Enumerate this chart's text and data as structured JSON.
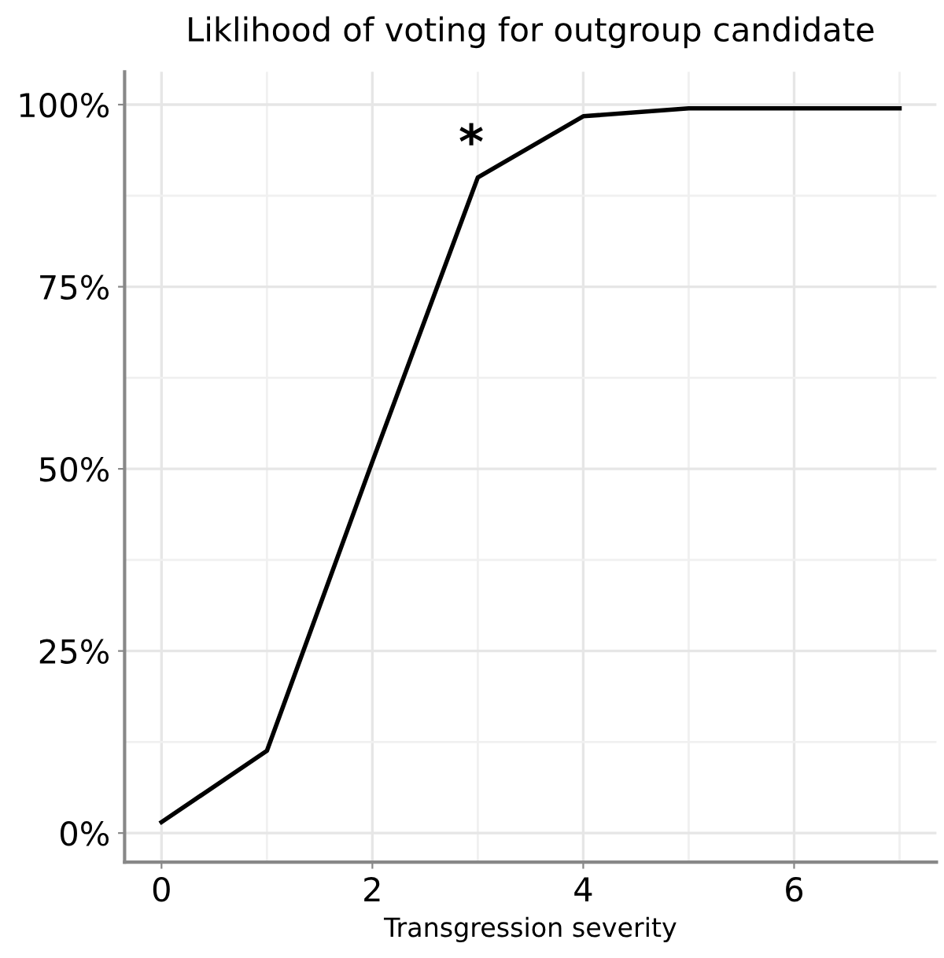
{
  "chart_data": {
    "type": "line",
    "title": "Liklihood of voting for outgroup candidate",
    "xlabel": "Transgression severity",
    "x": [
      0,
      1,
      2,
      3,
      4,
      5,
      6,
      7
    ],
    "series": [
      {
        "color": "#000000",
        "values": [
          1.5,
          11.3,
          51,
          90,
          98.4,
          99.5,
          99.5,
          99.5
        ]
      }
    ],
    "xlim": [
      -0.35,
      7.35
    ],
    "ylim": [
      -4,
      104.5
    ],
    "xticks": [
      0,
      2,
      4,
      6
    ],
    "yticks": [
      {
        "value": 0,
        "label": "0%"
      },
      {
        "value": 25,
        "label": "25%"
      },
      {
        "value": 50,
        "label": "50%"
      },
      {
        "value": 75,
        "label": "75%"
      },
      {
        "value": 100,
        "label": "100%"
      }
    ],
    "grid": true,
    "marker": "none",
    "line_style": "solid",
    "annotations": [
      {
        "text": "*",
        "x": 3,
        "y": 90
      }
    ]
  }
}
